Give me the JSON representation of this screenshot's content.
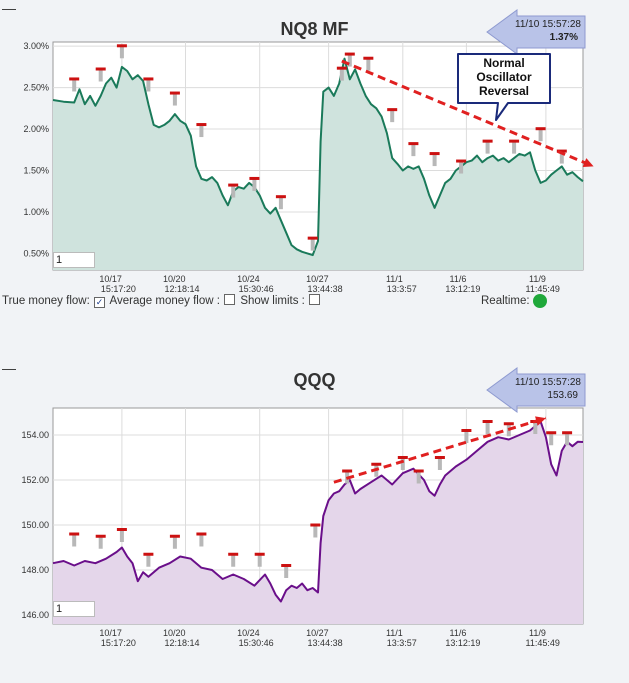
{
  "panels": [
    {
      "title": "NQ8 MF",
      "badge": {
        "time": "11/10 15:57:28",
        "value": "1.37%"
      },
      "input_value": "1",
      "controls": {
        "true_flow_label": "True money flow:",
        "true_flow_checked": "✓",
        "avg_flow_label": "Average money flow :",
        "limits_label": "Show limits :",
        "realtime_label": "Realtime:"
      },
      "annotation": {
        "lines": [
          "Normal",
          "Oscillator",
          "Reversal"
        ]
      }
    },
    {
      "title": "QQQ",
      "badge": {
        "time": "11/10 15:57:28",
        "value": "153.69"
      },
      "input_value": "1"
    }
  ],
  "colors": {
    "nq_line": "#1a7a5a",
    "nq_fill": "#cfe3dd",
    "qqq_line": "#6a0f8a",
    "qqq_fill": "#e4d6ea",
    "arrow": "#e02020",
    "realtime_dot": "#1fa83a"
  },
  "chart_data": [
    {
      "type": "line",
      "title": "NQ8 MF",
      "ylim": [
        0.3,
        3.05
      ],
      "yticks": [
        "0.50%",
        "1.00%",
        "1.50%",
        "2.00%",
        "2.50%",
        "3.00%"
      ],
      "ytick_values": [
        0.5,
        1.0,
        1.5,
        2.0,
        2.5,
        3.0
      ],
      "xticks": [
        {
          "date": "10/17",
          "time": "15:17:20",
          "x": 0.13
        },
        {
          "date": "10/20",
          "time": "12:18:14",
          "x": 0.25
        },
        {
          "date": "10/24",
          "time": "15:30:46",
          "x": 0.39
        },
        {
          "date": "10/27",
          "time": "13:44:38",
          "x": 0.52
        },
        {
          "date": "11/1",
          "time": "13:3:57",
          "x": 0.66
        },
        {
          "date": "11/6",
          "time": "13:12:19",
          "x": 0.78
        },
        {
          "date": "11/9",
          "time": "11:45:49",
          "x": 0.93
        }
      ],
      "x": [
        0,
        0.02,
        0.04,
        0.05,
        0.06,
        0.07,
        0.08,
        0.09,
        0.1,
        0.11,
        0.12,
        0.13,
        0.14,
        0.15,
        0.16,
        0.17,
        0.18,
        0.19,
        0.2,
        0.21,
        0.22,
        0.23,
        0.24,
        0.25,
        0.26,
        0.27,
        0.28,
        0.29,
        0.3,
        0.31,
        0.32,
        0.33,
        0.34,
        0.35,
        0.36,
        0.37,
        0.38,
        0.39,
        0.4,
        0.41,
        0.42,
        0.43,
        0.44,
        0.45,
        0.46,
        0.47,
        0.48,
        0.49,
        0.5,
        0.505,
        0.51,
        0.52,
        0.53,
        0.54,
        0.55,
        0.56,
        0.57,
        0.58,
        0.59,
        0.6,
        0.61,
        0.62,
        0.63,
        0.64,
        0.65,
        0.66,
        0.67,
        0.68,
        0.69,
        0.7,
        0.71,
        0.72,
        0.73,
        0.74,
        0.75,
        0.76,
        0.77,
        0.78,
        0.79,
        0.8,
        0.81,
        0.82,
        0.83,
        0.84,
        0.85,
        0.86,
        0.87,
        0.88,
        0.89,
        0.9,
        0.91,
        0.92,
        0.93,
        0.94,
        0.95,
        0.96,
        0.97,
        0.98,
        0.99,
        1.0
      ],
      "values": [
        2.35,
        2.33,
        2.32,
        2.48,
        2.3,
        2.4,
        2.28,
        2.4,
        2.55,
        2.62,
        2.5,
        2.75,
        2.7,
        2.6,
        2.65,
        2.58,
        2.3,
        2.05,
        2.02,
        2.05,
        2.1,
        2.18,
        2.1,
        2.06,
        1.92,
        1.55,
        1.4,
        1.38,
        1.42,
        1.35,
        1.2,
        1.08,
        1.25,
        1.3,
        1.28,
        1.35,
        1.3,
        1.2,
        1.05,
        0.98,
        1.05,
        0.9,
        0.75,
        0.6,
        0.55,
        0.52,
        0.5,
        0.48,
        0.65,
        1.85,
        2.45,
        2.5,
        2.4,
        2.55,
        2.85,
        2.6,
        2.72,
        2.55,
        2.4,
        2.3,
        2.25,
        2.15,
        1.95,
        1.65,
        1.58,
        1.5,
        1.55,
        1.52,
        1.55,
        1.4,
        1.2,
        1.05,
        1.2,
        1.35,
        1.4,
        1.5,
        1.55,
        1.6,
        1.62,
        1.68,
        1.6,
        1.65,
        1.68,
        1.62,
        1.65,
        1.6,
        1.65,
        1.7,
        1.68,
        1.72,
        1.5,
        1.35,
        1.38,
        1.45,
        1.5,
        1.55,
        1.45,
        1.48,
        1.42,
        1.37
      ],
      "markers": [
        {
          "x": 0.04,
          "y": 2.55
        },
        {
          "x": 0.09,
          "y": 2.67
        },
        {
          "x": 0.13,
          "y": 2.95
        },
        {
          "x": 0.18,
          "y": 2.55
        },
        {
          "x": 0.23,
          "y": 2.38
        },
        {
          "x": 0.28,
          "y": 2.0
        },
        {
          "x": 0.34,
          "y": 1.27
        },
        {
          "x": 0.38,
          "y": 1.35
        },
        {
          "x": 0.43,
          "y": 1.13
        },
        {
          "x": 0.49,
          "y": 0.63
        },
        {
          "x": 0.545,
          "y": 2.68
        },
        {
          "x": 0.56,
          "y": 2.85
        },
        {
          "x": 0.595,
          "y": 2.8
        },
        {
          "x": 0.64,
          "y": 2.18
        },
        {
          "x": 0.68,
          "y": 1.77
        },
        {
          "x": 0.72,
          "y": 1.65
        },
        {
          "x": 0.77,
          "y": 1.56
        },
        {
          "x": 0.82,
          "y": 1.8
        },
        {
          "x": 0.87,
          "y": 1.8
        },
        {
          "x": 0.92,
          "y": 1.95
        },
        {
          "x": 0.96,
          "y": 1.68
        }
      ],
      "arrow": {
        "from": {
          "x": 0.545,
          "y": 2.82
        },
        "to": {
          "x": 1.02,
          "y": 1.55
        }
      },
      "grid": true
    },
    {
      "type": "line",
      "title": "QQQ",
      "ylim": [
        145.6,
        155.2
      ],
      "yticks": [
        "146.00",
        "148.00",
        "150.00",
        "152.00",
        "154.00"
      ],
      "ytick_values": [
        146,
        148,
        150,
        152,
        154
      ],
      "xticks": [
        {
          "date": "10/17",
          "time": "15:17:20",
          "x": 0.13
        },
        {
          "date": "10/20",
          "time": "12:18:14",
          "x": 0.25
        },
        {
          "date": "10/24",
          "time": "15:30:46",
          "x": 0.39
        },
        {
          "date": "10/27",
          "time": "13:44:38",
          "x": 0.52
        },
        {
          "date": "11/1",
          "time": "13:3:57",
          "x": 0.66
        },
        {
          "date": "11/6",
          "time": "13:12:19",
          "x": 0.78
        },
        {
          "date": "11/9",
          "time": "11:45:49",
          "x": 0.93
        }
      ],
      "x": [
        0,
        0.02,
        0.04,
        0.06,
        0.08,
        0.1,
        0.12,
        0.13,
        0.14,
        0.15,
        0.16,
        0.17,
        0.18,
        0.19,
        0.2,
        0.22,
        0.24,
        0.26,
        0.28,
        0.3,
        0.32,
        0.34,
        0.36,
        0.38,
        0.4,
        0.41,
        0.42,
        0.43,
        0.44,
        0.45,
        0.46,
        0.47,
        0.48,
        0.49,
        0.5,
        0.505,
        0.51,
        0.52,
        0.53,
        0.54,
        0.55,
        0.56,
        0.57,
        0.58,
        0.6,
        0.62,
        0.64,
        0.66,
        0.68,
        0.7,
        0.71,
        0.72,
        0.73,
        0.74,
        0.76,
        0.78,
        0.8,
        0.82,
        0.84,
        0.86,
        0.88,
        0.9,
        0.91,
        0.92,
        0.93,
        0.94,
        0.95,
        0.96,
        0.97,
        0.98,
        0.99,
        1.0
      ],
      "values": [
        148.3,
        148.4,
        148.2,
        148.4,
        148.3,
        148.5,
        148.8,
        149.0,
        148.6,
        148.3,
        147.5,
        147.9,
        147.7,
        147.9,
        148.1,
        148.3,
        148.6,
        148.5,
        148.1,
        148.0,
        147.6,
        147.8,
        147.6,
        147.3,
        147.8,
        147.4,
        146.9,
        146.6,
        147.1,
        147.3,
        147.2,
        147.4,
        147.1,
        147.2,
        147.0,
        149.2,
        150.4,
        151.1,
        151.4,
        151.5,
        151.8,
        152.0,
        151.4,
        151.6,
        151.9,
        152.2,
        151.8,
        152.3,
        152.5,
        152.0,
        151.5,
        151.3,
        151.8,
        152.2,
        152.6,
        152.9,
        153.3,
        153.7,
        153.9,
        153.8,
        154.0,
        154.2,
        154.4,
        154.6,
        153.9,
        152.7,
        152.2,
        153.3,
        153.7,
        153.5,
        153.7,
        153.69
      ],
      "markers": [
        {
          "x": 0.04,
          "y": 149.4
        },
        {
          "x": 0.09,
          "y": 149.3
        },
        {
          "x": 0.13,
          "y": 149.6
        },
        {
          "x": 0.18,
          "y": 148.5
        },
        {
          "x": 0.23,
          "y": 149.3
        },
        {
          "x": 0.28,
          "y": 149.4
        },
        {
          "x": 0.34,
          "y": 148.5
        },
        {
          "x": 0.39,
          "y": 148.5
        },
        {
          "x": 0.44,
          "y": 148.0
        },
        {
          "x": 0.495,
          "y": 149.8
        },
        {
          "x": 0.555,
          "y": 152.2
        },
        {
          "x": 0.61,
          "y": 152.5
        },
        {
          "x": 0.66,
          "y": 152.8
        },
        {
          "x": 0.69,
          "y": 152.2
        },
        {
          "x": 0.73,
          "y": 152.8
        },
        {
          "x": 0.78,
          "y": 154.0
        },
        {
          "x": 0.82,
          "y": 154.4
        },
        {
          "x": 0.86,
          "y": 154.3
        },
        {
          "x": 0.91,
          "y": 154.4
        },
        {
          "x": 0.94,
          "y": 153.9
        },
        {
          "x": 0.97,
          "y": 153.9
        }
      ],
      "arrow": {
        "from": {
          "x": 0.53,
          "y": 151.9
        },
        "to": {
          "x": 0.93,
          "y": 154.75
        }
      },
      "grid": true
    }
  ]
}
